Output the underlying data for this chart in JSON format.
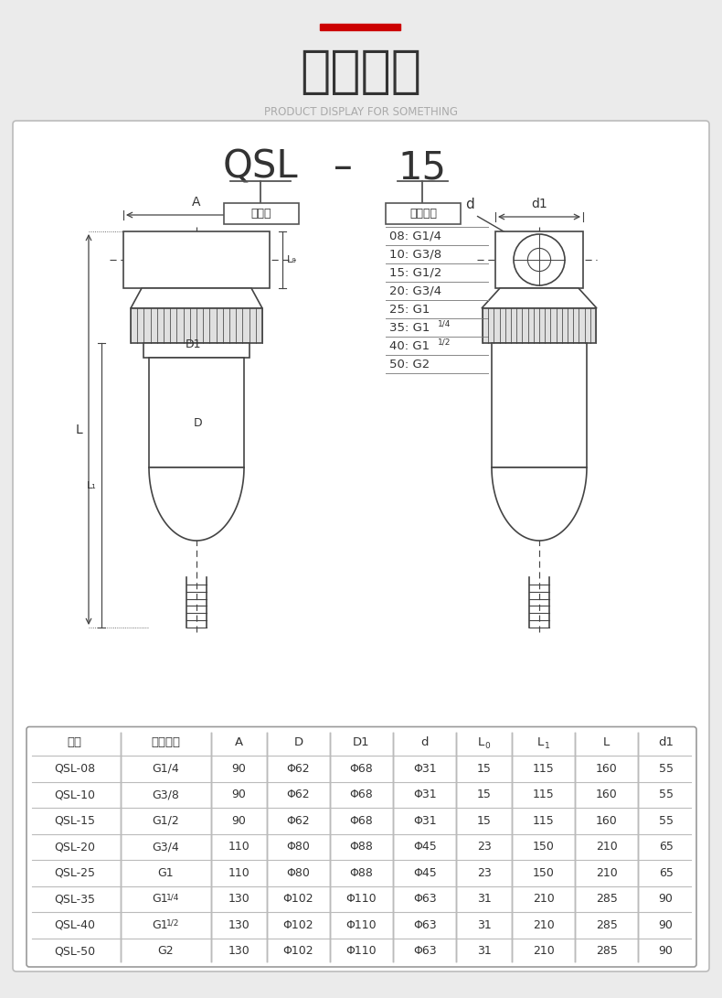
{
  "bg_color": "#ebebeb",
  "inner_bg": "#ffffff",
  "title_zh": "参数解析",
  "title_en": "PRODUCT DISPLAY FOR SOMETHING",
  "red_bar_color": "#cc0000",
  "title_color": "#333333",
  "subtitle_color": "#aaaaaa",
  "model_code": "QSL",
  "model_dash": "-",
  "model_num": "15",
  "label_series": "系列号",
  "label_port": "接管口径",
  "port_items": [
    {
      "text": "08: G1/4",
      "sup": ""
    },
    {
      "text": "10: G3/8",
      "sup": ""
    },
    {
      "text": "15: G1/2",
      "sup": ""
    },
    {
      "text": "20: G3/4",
      "sup": ""
    },
    {
      "text": "25: G1",
      "sup": ""
    },
    {
      "text": "35: G1",
      "sup": "1/4"
    },
    {
      "text": "40: G1",
      "sup": "1/2"
    },
    {
      "text": "50: G2",
      "sup": ""
    }
  ],
  "table_col_labels": [
    "型号",
    "接管口径",
    "A",
    "D",
    "D1",
    "d",
    "L0",
    "L1",
    "L",
    "d1"
  ],
  "table_data": [
    [
      "QSL-08",
      "G1/4",
      "90",
      "Φ62",
      "Φ68",
      "Φ31",
      "15",
      "115",
      "160",
      "55"
    ],
    [
      "QSL-10",
      "G3/8",
      "90",
      "Φ62",
      "Φ68",
      "Φ31",
      "15",
      "115",
      "160",
      "55"
    ],
    [
      "QSL-15",
      "G1/2",
      "90",
      "Φ62",
      "Φ68",
      "Φ31",
      "15",
      "115",
      "160",
      "55"
    ],
    [
      "QSL-20",
      "G3/4",
      "110",
      "Φ80",
      "Φ88",
      "Φ45",
      "23",
      "150",
      "210",
      "65"
    ],
    [
      "QSL-25",
      "G1",
      "110",
      "Φ80",
      "Φ88",
      "Φ45",
      "23",
      "150",
      "210",
      "65"
    ],
    [
      "QSL-35",
      "G11/4",
      "130",
      "Φ102",
      "Φ110",
      "Φ63",
      "31",
      "210",
      "285",
      "90"
    ],
    [
      "QSL-40",
      "G11/2",
      "130",
      "Φ102",
      "Φ110",
      "Φ63",
      "31",
      "210",
      "285",
      "90"
    ],
    [
      "QSL-50",
      "G2",
      "130",
      "Φ102",
      "Φ110",
      "Φ63",
      "31",
      "210",
      "285",
      "90"
    ]
  ],
  "diagram_color": "#444444"
}
